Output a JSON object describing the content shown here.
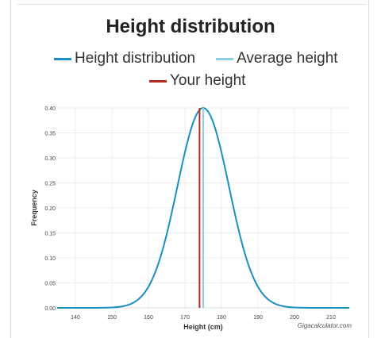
{
  "chart_data": {
    "type": "line",
    "title": "Height distribution",
    "xlabel": "Height (cm)",
    "ylabel": "Frequency",
    "xlim": [
      135,
      215
    ],
    "ylim": [
      0,
      0.4
    ],
    "x_ticks": [
      "140",
      "150",
      "160",
      "170",
      "180",
      "190",
      "200",
      "210"
    ],
    "x_tick_values": [
      140,
      150,
      160,
      170,
      180,
      190,
      200,
      210
    ],
    "y_ticks": [
      "0.00",
      "0.05",
      "0.10",
      "0.15",
      "0.20",
      "0.25",
      "0.30",
      "0.35",
      "0.40"
    ],
    "y_tick_values": [
      0,
      0.05,
      0.1,
      0.15,
      0.2,
      0.25,
      0.3,
      0.35,
      0.4
    ],
    "grid": true,
    "legend_position": "top",
    "series": [
      {
        "name": "Height distribution",
        "color": "#1a8fc4",
        "x": [
          135,
          140,
          145,
          150,
          155,
          160,
          165,
          170,
          175,
          180,
          185,
          190,
          195,
          200,
          205,
          210,
          215
        ],
        "y": [
          0.0,
          0.002,
          0.008,
          0.026,
          0.071,
          0.15,
          0.256,
          0.358,
          0.4,
          0.358,
          0.256,
          0.15,
          0.071,
          0.026,
          0.008,
          0.002,
          0.0
        ]
      },
      {
        "name": "Average height",
        "color": "#8ecfe8",
        "x_value": 175
      },
      {
        "name": "Your height",
        "color": "#b52a1e",
        "x_value": 174
      }
    ]
  },
  "credit": "Gigacalculator.com"
}
